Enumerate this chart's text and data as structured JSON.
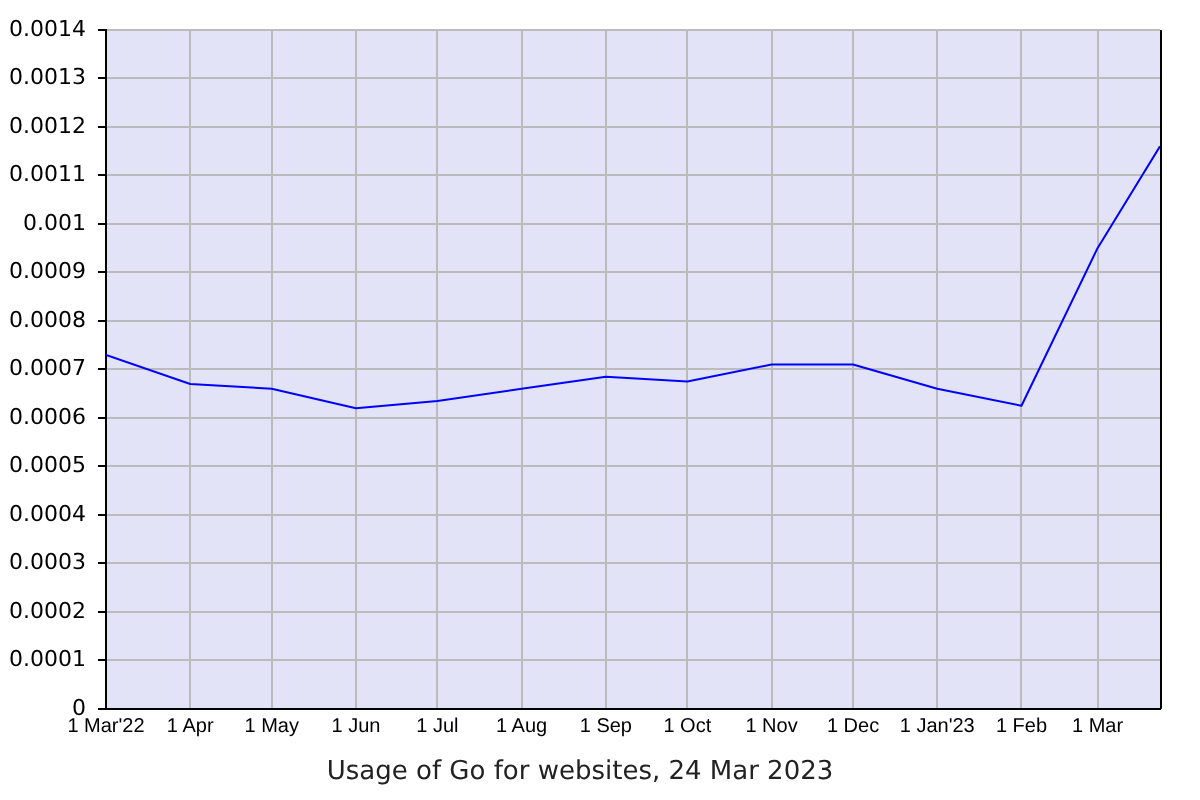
{
  "chart_data": {
    "type": "line",
    "title": "Usage of Go for websites, 24 Mar 2023",
    "x": [
      "2022-03-01",
      "2022-04-01",
      "2022-05-01",
      "2022-06-01",
      "2022-07-01",
      "2022-08-01",
      "2022-09-01",
      "2022-10-01",
      "2022-11-01",
      "2022-12-01",
      "2023-01-01",
      "2023-02-01",
      "2023-03-01",
      "2023-03-24"
    ],
    "values": [
      0.00073,
      0.00067,
      0.00066,
      0.00062,
      0.000635,
      0.00066,
      0.000685,
      0.000675,
      0.00071,
      0.00071,
      0.00066,
      0.000625,
      0.00095,
      0.00116
    ],
    "color": "#0000ff",
    "xlim": [
      "2022-03-01",
      "2023-03-24"
    ],
    "xticks": [
      {
        "value": "2022-03-01",
        "label": "1 Mar'22"
      },
      {
        "value": "2022-04-01",
        "label": "1 Apr"
      },
      {
        "value": "2022-05-01",
        "label": "1 May"
      },
      {
        "value": "2022-06-01",
        "label": "1 Jun"
      },
      {
        "value": "2022-07-01",
        "label": "1 Jul"
      },
      {
        "value": "2022-08-01",
        "label": "1 Aug"
      },
      {
        "value": "2022-09-01",
        "label": "1 Sep"
      },
      {
        "value": "2022-10-01",
        "label": "1 Oct"
      },
      {
        "value": "2022-11-01",
        "label": "1 Nov"
      },
      {
        "value": "2022-12-01",
        "label": "1 Dec"
      },
      {
        "value": "2023-01-01",
        "label": "1 Jan'23"
      },
      {
        "value": "2023-02-01",
        "label": "1 Feb"
      },
      {
        "value": "2023-03-01",
        "label": "1 Mar"
      }
    ],
    "ylim": [
      0,
      0.0014
    ],
    "yticks": [
      0,
      0.0001,
      0.0002,
      0.0003,
      0.0004,
      0.0005,
      0.0006,
      0.0007,
      0.0008,
      0.0009,
      0.001,
      0.0011,
      0.0012,
      0.0013,
      0.0014
    ],
    "grid": true
  }
}
